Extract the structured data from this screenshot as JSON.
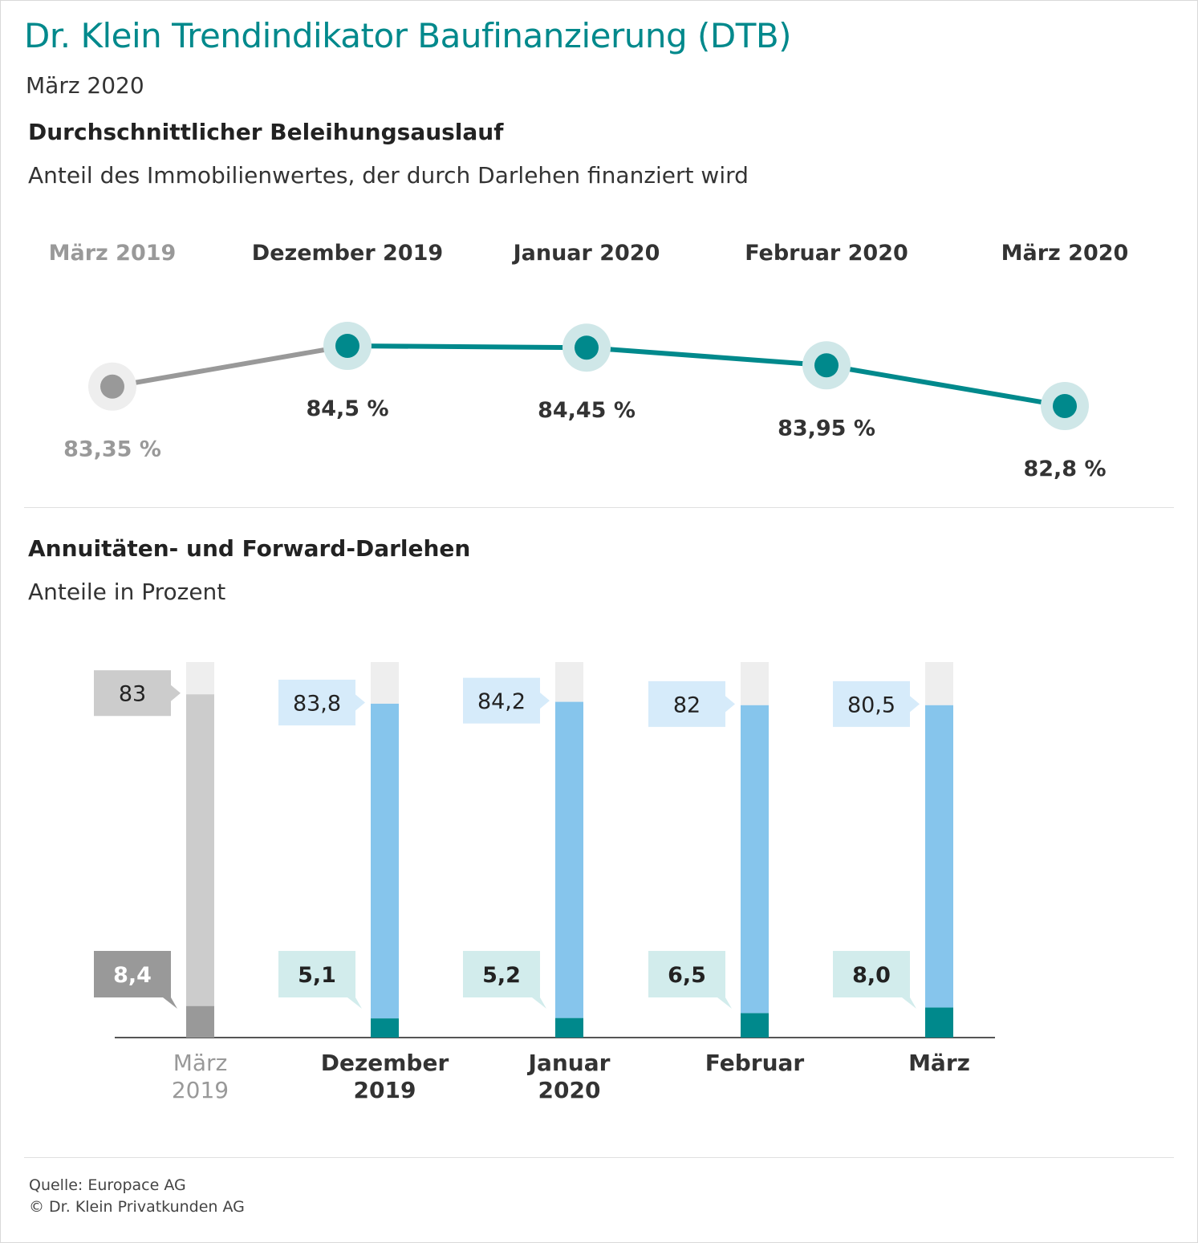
{
  "header": {
    "title": "Dr. Klein Trendindikator Baufinanzierung (DTB)",
    "date": "März 2020"
  },
  "section1": {
    "title": "Durchschnittlicher Beleihungsauslauf",
    "subtitle": "Anteil des Immobilienwertes, der durch Darlehen finanziert wird"
  },
  "section2": {
    "title": "Annuitäten- und Forward-Darlehen",
    "subtitle": "Anteile in Prozent"
  },
  "footer": {
    "source": "Quelle: Europace AG",
    "copyright": "© Dr. Klein Privatkunden AG"
  },
  "colors": {
    "teal": "#00898c",
    "teal_halo": "#cfe7e8",
    "gray_line": "#999999",
    "gray_halo": "#eeeeee",
    "blue_bar": "#86c5ec",
    "blue_label": "#d6ebfa",
    "teal_label": "#d2ecec",
    "gray_bar": "#cccccc",
    "gray_dark": "#999999",
    "bar_top": "#eeeeee"
  },
  "chart_data": [
    {
      "type": "line",
      "categories": [
        "März 2019",
        "Dezember 2019",
        "Januar 2020",
        "Februar 2020",
        "März 2020"
      ],
      "values": [
        83.35,
        84.5,
        84.45,
        83.95,
        82.8
      ],
      "value_labels": [
        "83,35 %",
        "84,5 %",
        "84,45 %",
        "83,95 %",
        "82,8 %"
      ],
      "highlight_first_as_reference": true
    },
    {
      "type": "bar",
      "stacked": true,
      "categories": [
        "März\n2019",
        "Dezember\n2019",
        "Januar\n2020",
        "Februar",
        "März"
      ],
      "series": [
        {
          "values": [
            8.4,
            5.1,
            5.2,
            6.5,
            8.0
          ],
          "labels": [
            "8,4",
            "5,1",
            "5,2",
            "6,5",
            "8,0"
          ]
        },
        {
          "values": [
            83,
            83.8,
            84.2,
            82,
            80.5
          ],
          "labels": [
            "83",
            "83,8",
            "84,2",
            "82",
            "80,5"
          ]
        }
      ],
      "ylim": [
        0,
        100
      ]
    }
  ]
}
